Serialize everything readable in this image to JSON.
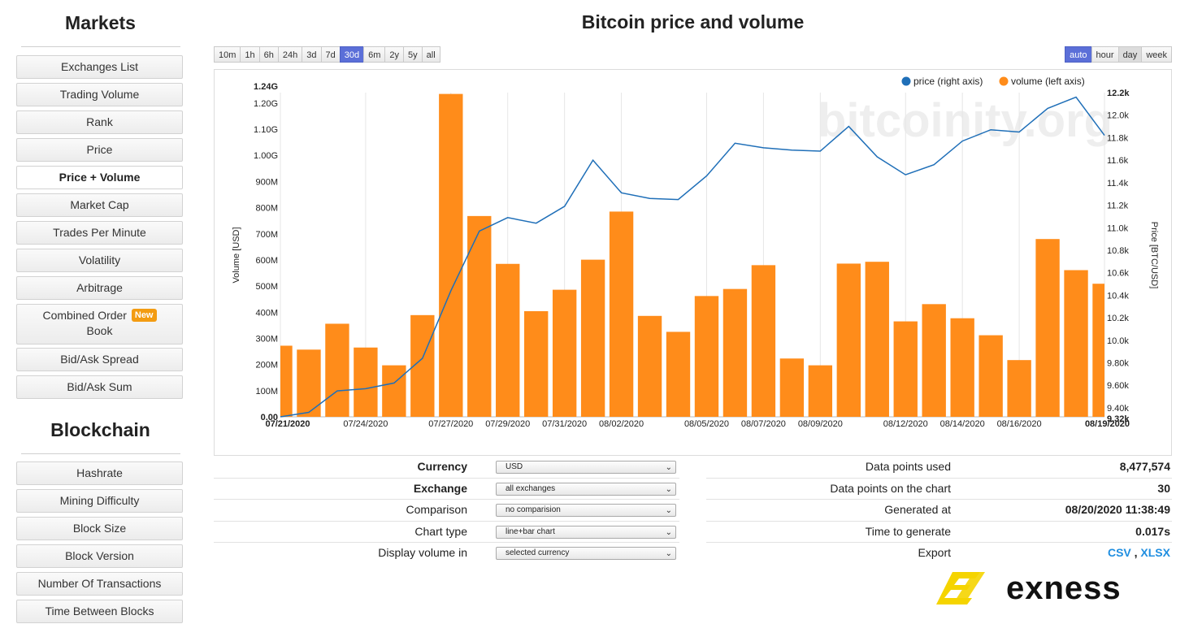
{
  "sidebar": {
    "markets_title": "Markets",
    "markets_items": [
      {
        "label": "Exchanges List"
      },
      {
        "label": "Trading Volume"
      },
      {
        "label": "Rank"
      },
      {
        "label": "Price"
      },
      {
        "label": "Price + Volume"
      },
      {
        "label": "Market Cap"
      },
      {
        "label": "Trades Per Minute"
      },
      {
        "label": "Volatility"
      },
      {
        "label": "Arbitrage"
      },
      {
        "label": "Combined Order",
        "label2": "Book",
        "badge": "New"
      },
      {
        "label": "Bid/Ask Spread"
      },
      {
        "label": "Bid/Ask Sum"
      }
    ],
    "blockchain_title": "Blockchain",
    "blockchain_items": [
      {
        "label": "Hashrate"
      },
      {
        "label": "Mining Difficulty"
      },
      {
        "label": "Block Size"
      },
      {
        "label": "Block Version"
      },
      {
        "label": "Number Of Transactions"
      },
      {
        "label": "Time Between Blocks"
      }
    ],
    "active_item": "Price + Volume"
  },
  "main": {
    "title": "Bitcoin price and volume",
    "ranges": [
      "10m",
      "1h",
      "6h",
      "24h",
      "3d",
      "7d",
      "30d",
      "6m",
      "2y",
      "5y",
      "all"
    ],
    "active_range": "30d",
    "resolutions": [
      "auto",
      "hour",
      "day",
      "week"
    ],
    "active_resolution": "auto",
    "watermark": "bitcoinity.org"
  },
  "chart_data": {
    "type": "bar+line",
    "title": "",
    "x": [
      "07/21/2020",
      "07/22/2020",
      "07/23/2020",
      "07/24/2020",
      "07/25/2020",
      "07/26/2020",
      "07/27/2020",
      "07/28/2020",
      "07/29/2020",
      "07/30/2020",
      "07/31/2020",
      "08/01/2020",
      "08/02/2020",
      "08/03/2020",
      "08/04/2020",
      "08/05/2020",
      "08/06/2020",
      "08/07/2020",
      "08/08/2020",
      "08/09/2020",
      "08/10/2020",
      "08/11/2020",
      "08/12/2020",
      "08/13/2020",
      "08/14/2020",
      "08/15/2020",
      "08/16/2020",
      "08/17/2020",
      "08/18/2020",
      "08/19/2020"
    ],
    "x_ticks": [
      "07/21/2020",
      "07/24/2020",
      "07/27/2020",
      "07/29/2020",
      "07/31/2020",
      "08/02/2020",
      "08/05/2020",
      "08/07/2020",
      "08/09/2020",
      "08/12/2020",
      "08/14/2020",
      "08/16/2020",
      "08/19/2020"
    ],
    "series": [
      {
        "name": "volume (left axis)",
        "color": "#ff8c1a",
        "type": "bar",
        "axis": "left",
        "values": [
          272,
          257,
          356,
          265,
          197,
          389,
          1235,
          768,
          585,
          404,
          486,
          601,
          785,
          386,
          325,
          462,
          489,
          580,
          223,
          197,
          586,
          593,
          365,
          431,
          377,
          312,
          217,
          680,
          561,
          509
        ]
      },
      {
        "name": "price (right axis)",
        "color": "#1f6fb8",
        "type": "line",
        "axis": "right",
        "values": [
          9320,
          9360,
          9550,
          9570,
          9620,
          9840,
          10440,
          10970,
          11090,
          11040,
          11190,
          11600,
          11310,
          11260,
          11250,
          11460,
          11750,
          11710,
          11690,
          11680,
          11900,
          11630,
          11470,
          11560,
          11770,
          11870,
          11850,
          12060,
          12160,
          11820
        ]
      }
    ],
    "left_axis": {
      "label": "Volume [USD]",
      "ylim": [
        0,
        1240
      ],
      "ticks": [
        "0.00",
        "100M",
        "200M",
        "300M",
        "400M",
        "500M",
        "600M",
        "700M",
        "800M",
        "900M",
        "1.00G",
        "1.10G",
        "1.20G",
        "1.24G"
      ],
      "tick_values": [
        0,
        100,
        200,
        300,
        400,
        500,
        600,
        700,
        800,
        900,
        1000,
        1100,
        1200,
        1240
      ]
    },
    "right_axis": {
      "label": "Price [BTC/USD]",
      "ylim": [
        9320,
        12200
      ],
      "ticks": [
        "9.32k",
        "9.40k",
        "9.60k",
        "9.80k",
        "10.0k",
        "10.2k",
        "10.4k",
        "10.6k",
        "10.8k",
        "11.0k",
        "11.2k",
        "11.4k",
        "11.6k",
        "11.8k",
        "12.0k",
        "12.2k"
      ],
      "tick_values": [
        9320,
        9400,
        9600,
        9800,
        10000,
        10200,
        10400,
        10600,
        10800,
        11000,
        11200,
        11400,
        11600,
        11800,
        12000,
        12200
      ]
    },
    "legend": [
      {
        "label": "price (right axis)",
        "color": "#1f6fb8"
      },
      {
        "label": "volume (left axis)",
        "color": "#ff8c1a"
      }
    ],
    "legend_position": "top-right",
    "grid": true
  },
  "settings": [
    {
      "label": "Currency",
      "bold": true,
      "value": "USD"
    },
    {
      "label": "Exchange",
      "bold": true,
      "value": "all exchanges"
    },
    {
      "label": "Comparison",
      "bold": false,
      "value": "no comparision"
    },
    {
      "label": "Chart type",
      "bold": false,
      "value": "line+bar chart"
    },
    {
      "label": "Display volume in",
      "bold": false,
      "value": "selected currency"
    }
  ],
  "info": [
    {
      "label": "Data points used",
      "value": "8,477,574"
    },
    {
      "label": "Data points on the chart",
      "value": "30"
    },
    {
      "label": "Generated at",
      "value": "08/20/2020 11:38:49"
    },
    {
      "label": "Time to generate",
      "value": "0.017s"
    }
  ],
  "export": {
    "label": "Export",
    "csv": "CSV",
    "sep": ",",
    "xlsx": "XLSX"
  },
  "brand": {
    "name": "exness",
    "mark_color": "#f5d400"
  }
}
